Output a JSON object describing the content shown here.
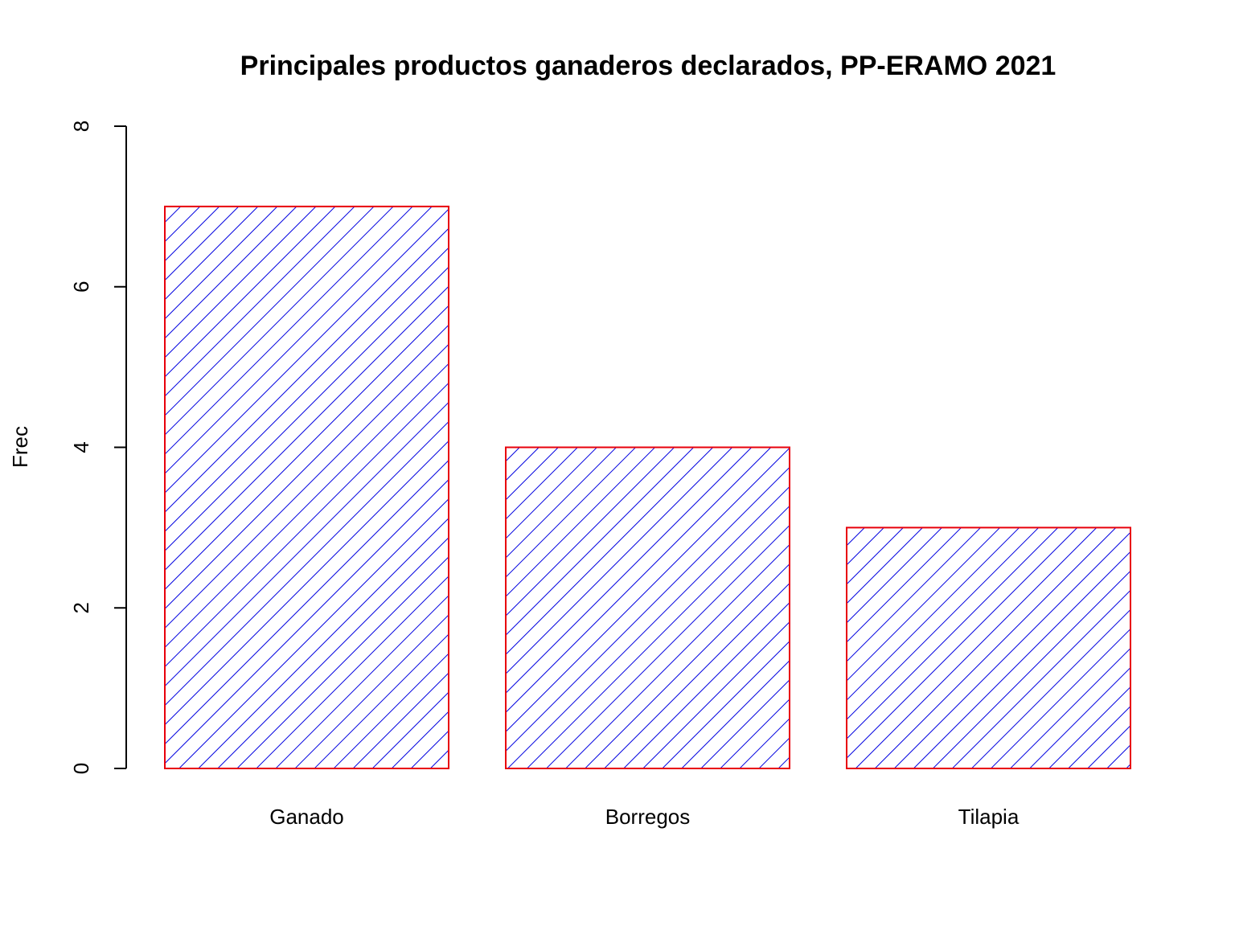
{
  "chart_data": {
    "type": "bar",
    "title": "Principales productos ganaderos declarados, PP-ERAMO 2021",
    "xlabel": "",
    "ylabel": "Frec",
    "categories": [
      "Ganado",
      "Borregos",
      "Tilapia"
    ],
    "values": [
      7,
      4,
      3
    ],
    "ylim": [
      0,
      8
    ],
    "yticks": [
      "0",
      "2",
      "4",
      "6",
      "8"
    ],
    "grid": false,
    "legend": "none",
    "bar_border_color": "#e8000b",
    "hatch_color": "#0000e0",
    "background": "#ffffff"
  }
}
